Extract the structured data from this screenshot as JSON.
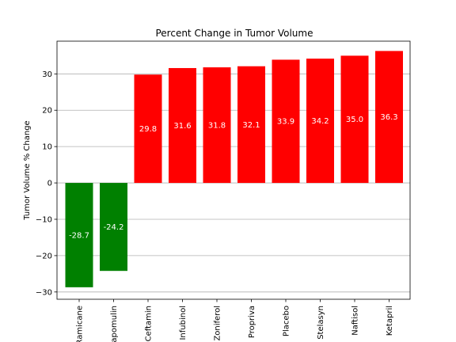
{
  "chart_data": {
    "type": "bar",
    "title": "Percent Change in Tumor Volume",
    "xlabel": "",
    "ylabel": "Tumor Volume % Change",
    "categories": [
      "Ramicane",
      "Capomulin",
      "Ceftamin",
      "Infubinol",
      "Zoniferol",
      "Propriva",
      "Placebo",
      "Stelasyn",
      "Naftisol",
      "Ketapril"
    ],
    "values": [
      -28.7,
      -24.2,
      29.8,
      31.6,
      31.8,
      32.1,
      33.9,
      34.2,
      35.0,
      36.3
    ],
    "data_labels": [
      "-28.7",
      "-24.2",
      "29.8",
      "31.6",
      "31.8",
      "32.1",
      "33.9",
      "34.2",
      "35.0",
      "36.3"
    ],
    "ylim": [
      -32,
      39
    ],
    "yticks": [
      -30,
      -20,
      -10,
      0,
      10,
      20,
      30
    ],
    "ytick_labels": [
      "−30",
      "−20",
      "−10",
      "0",
      "10",
      "20",
      "30"
    ],
    "grid": "y-axis horizontal",
    "colors": {
      "negative": "#008000",
      "positive": "#ff0000",
      "grid": "#b0b0b0",
      "axis": "#000000"
    }
  }
}
